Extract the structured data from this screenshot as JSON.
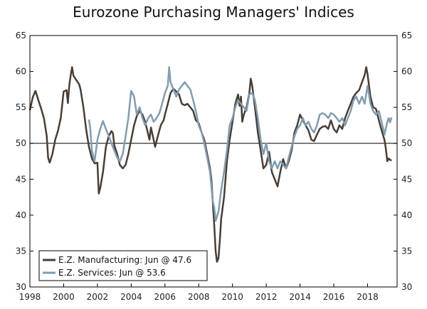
{
  "chart_data": {
    "type": "line",
    "title": "Eurozone Purchasing Managers' Indices",
    "xlabel": "",
    "ylabel": "",
    "xlim": [
      1998.0,
      2019.75
    ],
    "ylim": [
      30,
      65
    ],
    "x_ticks": [
      1998,
      2000,
      2002,
      2004,
      2006,
      2008,
      2010,
      2012,
      2014,
      2016,
      2018
    ],
    "x_tick_labels": [
      "1998",
      "2000",
      "2002",
      "2004",
      "2006",
      "2008",
      "2010",
      "2012",
      "2014",
      "2016",
      "2018"
    ],
    "y_ticks": [
      30,
      35,
      40,
      45,
      50,
      55,
      60,
      65
    ],
    "y_tick_labels": [
      "30",
      "35",
      "40",
      "45",
      "50",
      "55",
      "60",
      "65"
    ],
    "reference_line": 50,
    "legend_position": "bottom-left",
    "series": [
      {
        "name": "E.Z. Manufacturing: Jun @ 47.6",
        "color": "#4a3d33",
        "points": [
          [
            1998.0,
            54.6
          ],
          [
            1998.17,
            56.4
          ],
          [
            1998.33,
            57.3
          ],
          [
            1998.5,
            56.0
          ],
          [
            1998.67,
            54.8
          ],
          [
            1998.83,
            53.5
          ],
          [
            1999.0,
            51.0
          ],
          [
            1999.08,
            48.0
          ],
          [
            1999.17,
            47.3
          ],
          [
            1999.33,
            48.5
          ],
          [
            1999.5,
            50.5
          ],
          [
            1999.67,
            51.8
          ],
          [
            1999.83,
            53.5
          ],
          [
            2000.0,
            57.2
          ],
          [
            2000.17,
            57.4
          ],
          [
            2000.25,
            55.6
          ],
          [
            2000.33,
            58.0
          ],
          [
            2000.42,
            59.5
          ],
          [
            2000.5,
            60.6
          ],
          [
            2000.58,
            59.4
          ],
          [
            2000.75,
            58.8
          ],
          [
            2000.92,
            58.2
          ],
          [
            2001.0,
            57.5
          ],
          [
            2001.17,
            55.0
          ],
          [
            2001.33,
            52.0
          ],
          [
            2001.5,
            49.5
          ],
          [
            2001.67,
            47.9
          ],
          [
            2001.83,
            47.2
          ],
          [
            2002.0,
            47.3
          ],
          [
            2002.08,
            43.0
          ],
          [
            2002.17,
            43.8
          ],
          [
            2002.33,
            46.0
          ],
          [
            2002.5,
            49.5
          ],
          [
            2002.67,
            51.0
          ],
          [
            2002.83,
            51.7
          ],
          [
            2002.92,
            51.4
          ],
          [
            2003.0,
            49.7
          ],
          [
            2003.17,
            48.5
          ],
          [
            2003.33,
            47.0
          ],
          [
            2003.5,
            46.5
          ],
          [
            2003.67,
            47.0
          ],
          [
            2003.83,
            48.5
          ],
          [
            2004.0,
            50.5
          ],
          [
            2004.17,
            52.5
          ],
          [
            2004.33,
            53.8
          ],
          [
            2004.5,
            54.5
          ],
          [
            2004.67,
            54.0
          ],
          [
            2004.83,
            53.0
          ],
          [
            2005.0,
            51.3
          ],
          [
            2005.08,
            50.5
          ],
          [
            2005.17,
            52.2
          ],
          [
            2005.33,
            50.5
          ],
          [
            2005.42,
            49.5
          ],
          [
            2005.58,
            51.0
          ],
          [
            2005.75,
            52.5
          ],
          [
            2005.92,
            53.2
          ],
          [
            2006.0,
            54.0
          ],
          [
            2006.17,
            55.5
          ],
          [
            2006.33,
            57.0
          ],
          [
            2006.5,
            57.6
          ],
          [
            2006.67,
            57.2
          ],
          [
            2006.83,
            56.8
          ],
          [
            2007.0,
            55.5
          ],
          [
            2007.17,
            55.3
          ],
          [
            2007.33,
            55.5
          ],
          [
            2007.5,
            55.0
          ],
          [
            2007.67,
            54.5
          ],
          [
            2007.83,
            53.2
          ],
          [
            2008.0,
            52.8
          ],
          [
            2008.17,
            51.5
          ],
          [
            2008.33,
            50.5
          ],
          [
            2008.5,
            48.5
          ],
          [
            2008.67,
            46.5
          ],
          [
            2008.75,
            45.0
          ],
          [
            2008.83,
            42.0
          ],
          [
            2008.92,
            38.5
          ],
          [
            2009.0,
            35.0
          ],
          [
            2009.08,
            33.5
          ],
          [
            2009.17,
            34.0
          ],
          [
            2009.25,
            36.5
          ],
          [
            2009.33,
            39.5
          ],
          [
            2009.5,
            42.5
          ],
          [
            2009.67,
            47.5
          ],
          [
            2009.83,
            50.5
          ],
          [
            2010.0,
            53.0
          ],
          [
            2010.17,
            55.5
          ],
          [
            2010.33,
            56.8
          ],
          [
            2010.42,
            55.2
          ],
          [
            2010.5,
            56.5
          ],
          [
            2010.58,
            53.0
          ],
          [
            2010.67,
            54.0
          ],
          [
            2010.83,
            55.0
          ],
          [
            2011.0,
            57.0
          ],
          [
            2011.08,
            59.0
          ],
          [
            2011.17,
            58.0
          ],
          [
            2011.33,
            55.0
          ],
          [
            2011.5,
            51.5
          ],
          [
            2011.67,
            49.0
          ],
          [
            2011.83,
            46.5
          ],
          [
            2012.0,
            47.0
          ],
          [
            2012.17,
            48.8
          ],
          [
            2012.33,
            46.0
          ],
          [
            2012.5,
            45.0
          ],
          [
            2012.67,
            44.0
          ],
          [
            2012.83,
            46.0
          ],
          [
            2013.0,
            47.8
          ],
          [
            2013.17,
            46.5
          ],
          [
            2013.33,
            47.5
          ],
          [
            2013.5,
            49.0
          ],
          [
            2013.67,
            51.5
          ],
          [
            2013.83,
            52.5
          ],
          [
            2014.0,
            54.0
          ],
          [
            2014.17,
            53.2
          ],
          [
            2014.33,
            52.5
          ],
          [
            2014.5,
            51.8
          ],
          [
            2014.67,
            50.5
          ],
          [
            2014.83,
            50.3
          ],
          [
            2015.0,
            51.2
          ],
          [
            2015.17,
            52.0
          ],
          [
            2015.33,
            52.3
          ],
          [
            2015.5,
            52.4
          ],
          [
            2015.67,
            52.0
          ],
          [
            2015.83,
            53.2
          ],
          [
            2016.0,
            52.0
          ],
          [
            2016.17,
            51.5
          ],
          [
            2016.33,
            52.5
          ],
          [
            2016.5,
            52.0
          ],
          [
            2016.67,
            53.5
          ],
          [
            2016.83,
            54.5
          ],
          [
            2017.0,
            55.5
          ],
          [
            2017.17,
            56.5
          ],
          [
            2017.33,
            57.0
          ],
          [
            2017.5,
            57.4
          ],
          [
            2017.67,
            58.5
          ],
          [
            2017.83,
            59.5
          ],
          [
            2017.92,
            60.6
          ],
          [
            2018.0,
            59.6
          ],
          [
            2018.17,
            56.5
          ],
          [
            2018.33,
            55.0
          ],
          [
            2018.5,
            54.8
          ],
          [
            2018.67,
            53.2
          ],
          [
            2018.83,
            51.8
          ],
          [
            2019.0,
            50.5
          ],
          [
            2019.08,
            49.3
          ],
          [
            2019.17,
            47.5
          ],
          [
            2019.25,
            47.9
          ],
          [
            2019.33,
            47.7
          ],
          [
            2019.42,
            47.6
          ]
        ]
      },
      {
        "name": "E.Z. Services: Jun @ 53.6",
        "color": "#7f9db2",
        "points": [
          [
            2001.5,
            53.3
          ],
          [
            2001.58,
            52.0
          ],
          [
            2001.67,
            49.0
          ],
          [
            2001.83,
            47.5
          ],
          [
            2002.0,
            50.5
          ],
          [
            2002.17,
            52.0
          ],
          [
            2002.33,
            53.1
          ],
          [
            2002.5,
            52.0
          ],
          [
            2002.67,
            51.0
          ],
          [
            2002.83,
            50.0
          ],
          [
            2003.0,
            49.0
          ],
          [
            2003.17,
            48.0
          ],
          [
            2003.33,
            47.5
          ],
          [
            2003.5,
            48.5
          ],
          [
            2003.67,
            51.0
          ],
          [
            2003.83,
            53.5
          ],
          [
            2004.0,
            57.3
          ],
          [
            2004.17,
            56.5
          ],
          [
            2004.33,
            54.0
          ],
          [
            2004.5,
            55.0
          ],
          [
            2004.67,
            53.5
          ],
          [
            2004.83,
            52.5
          ],
          [
            2005.0,
            53.5
          ],
          [
            2005.17,
            54.0
          ],
          [
            2005.33,
            53.0
          ],
          [
            2005.5,
            53.5
          ],
          [
            2005.67,
            54.2
          ],
          [
            2005.83,
            55.5
          ],
          [
            2006.0,
            57.0
          ],
          [
            2006.17,
            58.0
          ],
          [
            2006.25,
            60.6
          ],
          [
            2006.33,
            58.5
          ],
          [
            2006.5,
            57.5
          ],
          [
            2006.67,
            56.5
          ],
          [
            2006.83,
            57.5
          ],
          [
            2007.0,
            58.0
          ],
          [
            2007.17,
            58.5
          ],
          [
            2007.33,
            58.0
          ],
          [
            2007.5,
            57.5
          ],
          [
            2007.67,
            56.0
          ],
          [
            2007.83,
            54.5
          ],
          [
            2008.0,
            52.5
          ],
          [
            2008.17,
            51.5
          ],
          [
            2008.33,
            50.0
          ],
          [
            2008.5,
            48.0
          ],
          [
            2008.67,
            46.0
          ],
          [
            2008.83,
            42.0
          ],
          [
            2008.92,
            41.0
          ],
          [
            2009.0,
            39.2
          ],
          [
            2009.17,
            40.5
          ],
          [
            2009.33,
            43.5
          ],
          [
            2009.5,
            46.0
          ],
          [
            2009.67,
            49.0
          ],
          [
            2009.83,
            52.5
          ],
          [
            2010.0,
            53.5
          ],
          [
            2010.17,
            55.0
          ],
          [
            2010.33,
            56.0
          ],
          [
            2010.5,
            55.5
          ],
          [
            2010.67,
            55.0
          ],
          [
            2010.83,
            54.5
          ],
          [
            2011.0,
            56.8
          ],
          [
            2011.17,
            57.0
          ],
          [
            2011.33,
            56.0
          ],
          [
            2011.5,
            53.5
          ],
          [
            2011.67,
            50.5
          ],
          [
            2011.83,
            48.5
          ],
          [
            2012.0,
            50.0
          ],
          [
            2012.17,
            47.5
          ],
          [
            2012.33,
            46.5
          ],
          [
            2012.5,
            47.5
          ],
          [
            2012.67,
            46.5
          ],
          [
            2012.83,
            47.5
          ],
          [
            2013.0,
            47.0
          ],
          [
            2013.17,
            46.5
          ],
          [
            2013.33,
            48.0
          ],
          [
            2013.5,
            49.5
          ],
          [
            2013.67,
            51.0
          ],
          [
            2013.83,
            52.0
          ],
          [
            2014.0,
            52.5
          ],
          [
            2014.17,
            53.5
          ],
          [
            2014.33,
            52.5
          ],
          [
            2014.5,
            53.0
          ],
          [
            2014.67,
            52.0
          ],
          [
            2014.83,
            51.5
          ],
          [
            2015.0,
            52.5
          ],
          [
            2015.17,
            54.0
          ],
          [
            2015.33,
            54.2
          ],
          [
            2015.5,
            54.0
          ],
          [
            2015.67,
            53.5
          ],
          [
            2015.83,
            54.2
          ],
          [
            2016.0,
            54.0
          ],
          [
            2016.17,
            53.5
          ],
          [
            2016.33,
            53.0
          ],
          [
            2016.5,
            53.5
          ],
          [
            2016.67,
            52.5
          ],
          [
            2016.83,
            53.5
          ],
          [
            2017.0,
            54.5
          ],
          [
            2017.17,
            56.0
          ],
          [
            2017.33,
            56.5
          ],
          [
            2017.5,
            55.5
          ],
          [
            2017.67,
            56.5
          ],
          [
            2017.83,
            55.5
          ],
          [
            2018.0,
            58.0
          ],
          [
            2018.17,
            55.5
          ],
          [
            2018.33,
            54.5
          ],
          [
            2018.5,
            54.0
          ],
          [
            2018.67,
            54.5
          ],
          [
            2018.83,
            53.0
          ],
          [
            2019.0,
            51.2
          ],
          [
            2019.17,
            53.0
          ],
          [
            2019.25,
            53.5
          ],
          [
            2019.33,
            52.9
          ],
          [
            2019.42,
            53.6
          ]
        ]
      }
    ]
  }
}
